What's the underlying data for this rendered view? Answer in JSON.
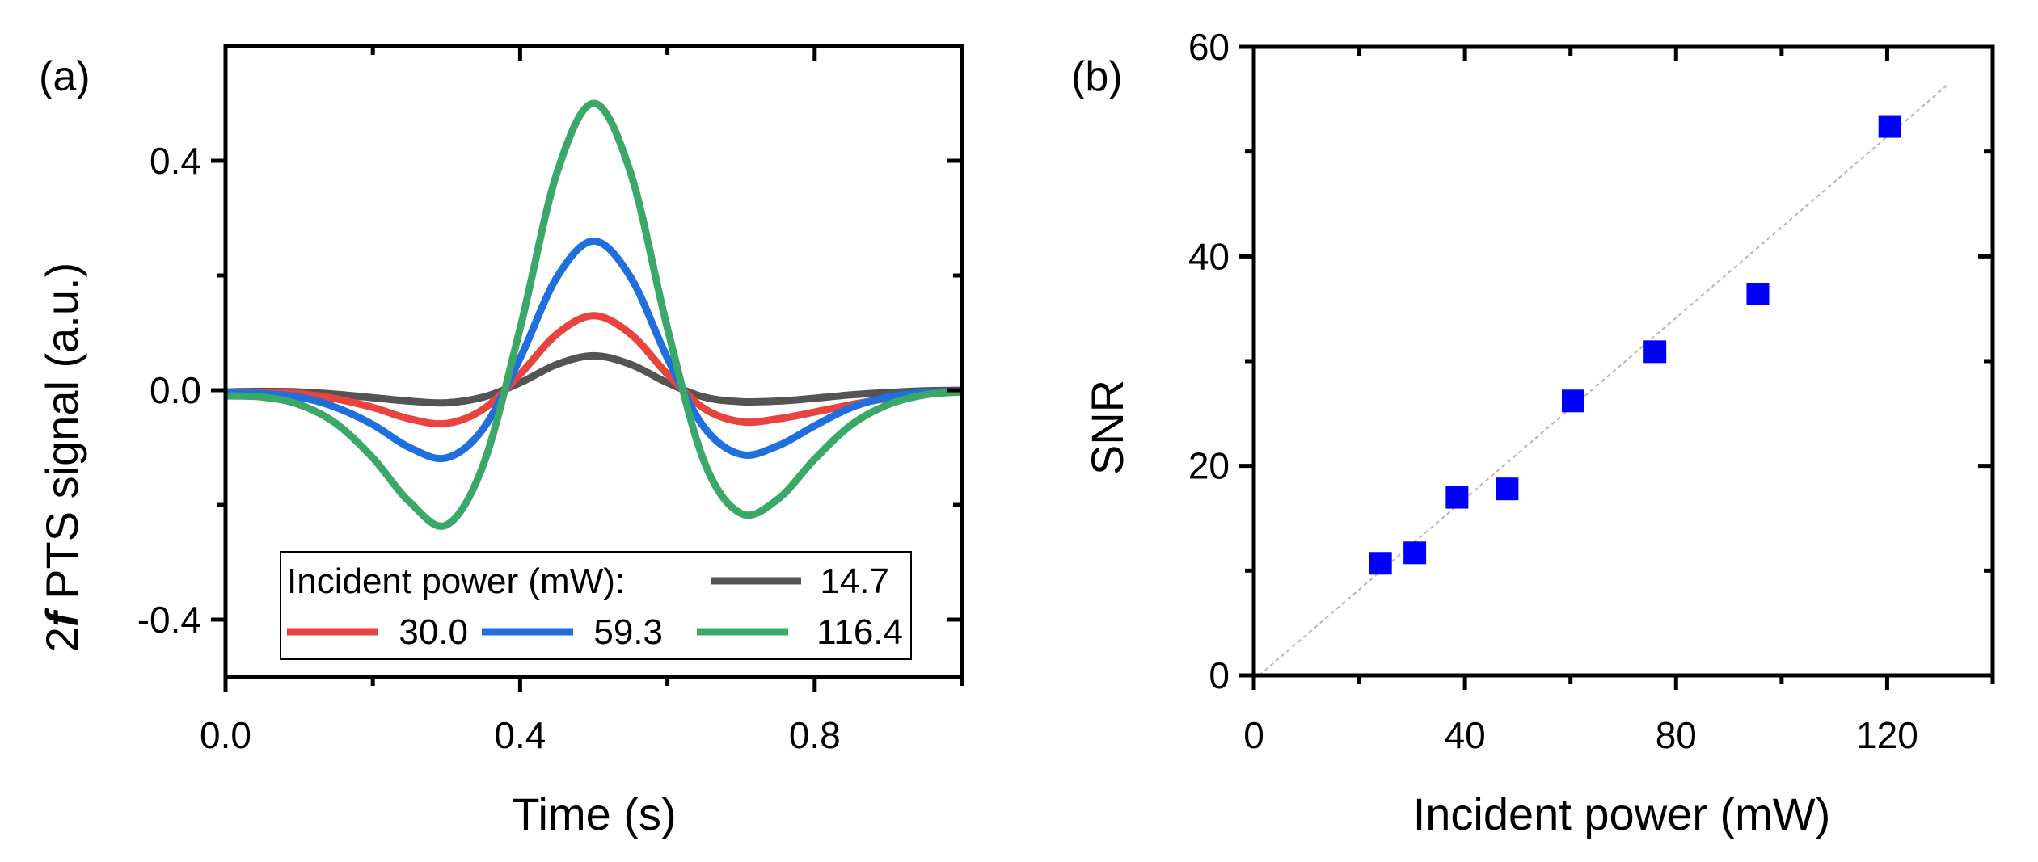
{
  "chart_data": [
    {
      "type": "line",
      "panel_label": "(a)",
      "xlabel": "Time (s)",
      "ylabel_prefix": "2",
      "ylabel_italic": "f",
      "ylabel_rest": " PTS signal (a.u.)",
      "xlim": [
        0,
        1
      ],
      "ylim": [
        -0.5,
        0.6
      ],
      "xticks": [
        0.0,
        0.4,
        0.8
      ],
      "xtick_labels": [
        "0.0",
        "0.4",
        "0.8"
      ],
      "xminor": [
        0.2,
        0.6,
        1.0
      ],
      "yticks": [
        -0.4,
        0.0,
        0.4
      ],
      "ytick_labels": [
        "-0.4",
        "0.0",
        "0.4"
      ],
      "yminor": [
        -0.2,
        0.2
      ],
      "grid": false,
      "legend_title": "Incident power (mW):",
      "legend_placement": "bottom-center",
      "x": [
        0,
        0.05,
        0.1,
        0.15,
        0.2,
        0.25,
        0.3,
        0.35,
        0.4,
        0.45,
        0.5,
        0.55,
        0.6,
        0.65,
        0.7,
        0.75,
        0.8,
        0.85,
        0.9,
        0.95,
        1.0
      ],
      "series": [
        {
          "name": "14.7",
          "color": "#545454",
          "values": [
            -0.003,
            -0.002,
            -0.003,
            -0.007,
            -0.013,
            -0.019,
            -0.022,
            -0.012,
            0.013,
            0.045,
            0.06,
            0.045,
            0.013,
            -0.012,
            -0.02,
            -0.019,
            -0.014,
            -0.008,
            -0.004,
            -0.001,
            0.0
          ]
        },
        {
          "name": "30.0",
          "color": "#e8433f",
          "values": [
            -0.005,
            -0.004,
            -0.006,
            -0.015,
            -0.03,
            -0.05,
            -0.058,
            -0.033,
            0.028,
            0.098,
            0.13,
            0.098,
            0.028,
            -0.032,
            -0.055,
            -0.05,
            -0.038,
            -0.025,
            -0.014,
            -0.005,
            -0.002
          ]
        },
        {
          "name": "59.3",
          "color": "#1f6fde",
          "values": [
            -0.005,
            -0.006,
            -0.012,
            -0.03,
            -0.06,
            -0.1,
            -0.118,
            -0.067,
            0.056,
            0.197,
            0.26,
            0.197,
            0.056,
            -0.065,
            -0.112,
            -0.097,
            -0.062,
            -0.03,
            -0.012,
            -0.004,
            -0.002
          ]
        },
        {
          "name": "116.4",
          "color": "#3aa868",
          "values": [
            -0.01,
            -0.012,
            -0.025,
            -0.058,
            -0.118,
            -0.195,
            -0.235,
            -0.13,
            0.108,
            0.379,
            0.5,
            0.379,
            0.108,
            -0.125,
            -0.215,
            -0.19,
            -0.12,
            -0.06,
            -0.025,
            -0.008,
            -0.003
          ]
        }
      ]
    },
    {
      "type": "scatter",
      "panel_label": "(b)",
      "xlabel": "Incident power (mW)",
      "ylabel": "SNR",
      "xlim": [
        0,
        140
      ],
      "ylim": [
        0,
        60
      ],
      "xticks": [
        0,
        40,
        80,
        120
      ],
      "xtick_labels": [
        "0",
        "40",
        "80",
        "120"
      ],
      "xminor": [
        20,
        60,
        100,
        140
      ],
      "yticks": [
        0,
        20,
        40,
        60
      ],
      "ytick_labels": [
        "0",
        "20",
        "40",
        "60"
      ],
      "yminor": [
        10,
        30,
        50
      ],
      "grid": false,
      "marker_color": "#0000ff",
      "points": [
        {
          "x": 24,
          "y": 10.7
        },
        {
          "x": 30.5,
          "y": 11.7
        },
        {
          "x": 38.5,
          "y": 17.0
        },
        {
          "x": 48,
          "y": 17.8
        },
        {
          "x": 60.5,
          "y": 26.2
        },
        {
          "x": 76,
          "y": 30.9
        },
        {
          "x": 95.5,
          "y": 36.4
        },
        {
          "x": 120.5,
          "y": 52.4
        }
      ],
      "fit_line": {
        "color": "#b4b4b4",
        "x": [
          1,
          131.5
        ],
        "y": [
          0,
          56.4
        ]
      }
    }
  ]
}
